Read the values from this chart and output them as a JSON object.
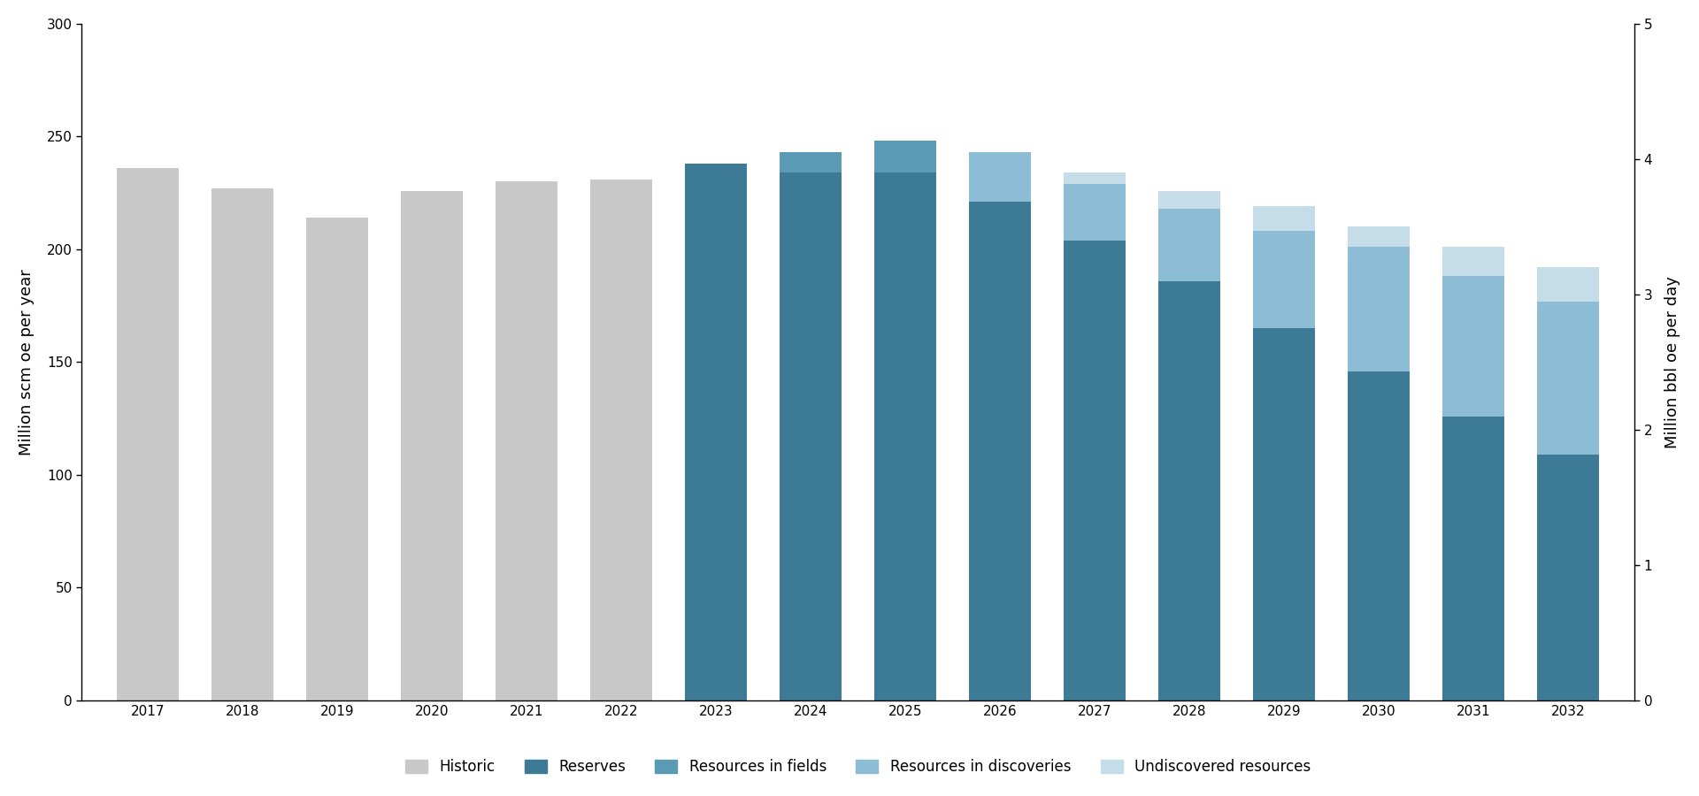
{
  "hist_years": [
    2017,
    2018,
    2019,
    2020,
    2021,
    2022
  ],
  "fore_years": [
    2023,
    2024,
    2025,
    2026,
    2027,
    2028,
    2029,
    2030,
    2031,
    2032
  ],
  "all_years": [
    2017,
    2018,
    2019,
    2020,
    2021,
    2022,
    2023,
    2024,
    2025,
    2026,
    2027,
    2028,
    2029,
    2030,
    2031,
    2032
  ],
  "historic_vals": [
    236,
    227,
    214,
    226,
    230,
    231
  ],
  "reserves_vals": [
    238,
    234,
    234,
    221,
    204,
    186,
    165,
    146,
    126,
    109
  ],
  "res_fields_vals": [
    0,
    9,
    14,
    0,
    0,
    0,
    0,
    0,
    0,
    0
  ],
  "res_disc_vals": [
    0,
    0,
    0,
    22,
    25,
    32,
    43,
    55,
    62,
    68
  ],
  "undiscovered_vals": [
    0,
    0,
    0,
    0,
    5,
    8,
    11,
    9,
    13,
    15
  ],
  "colors": {
    "historic": "#c8c8c8",
    "reserves": "#3d7a96",
    "resources_fields": "#5b9ab5",
    "resources_discoveries": "#8dbdd4",
    "undiscovered": "#c5dde8"
  },
  "legend_labels": [
    "Historic",
    "Reserves",
    "Resources in fields",
    "Resources in discoveries",
    "Undiscovered resources"
  ],
  "ylabel_left": "Million scm oe per year",
  "ylabel_right": "Million bbl oe per day",
  "ylim_left": [
    0,
    300
  ],
  "ylim_right": [
    0,
    5
  ],
  "yticks_left": [
    0,
    50,
    100,
    150,
    200,
    250,
    300
  ],
  "yticks_right": [
    0,
    1,
    2,
    3,
    4,
    5
  ],
  "bar_width": 0.65,
  "xlim": [
    2016.3,
    2032.7
  ],
  "background_color": "#ffffff"
}
